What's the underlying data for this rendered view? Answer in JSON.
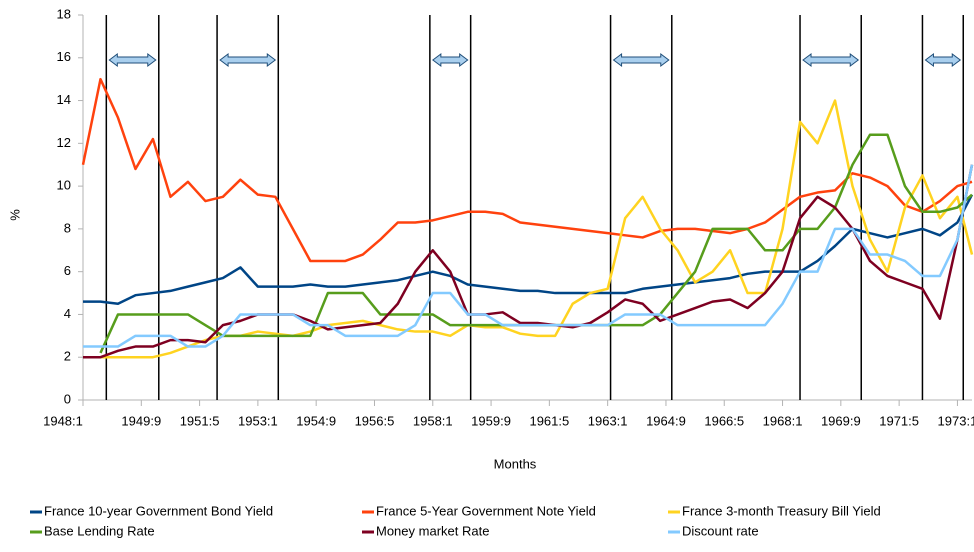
{
  "chart_data": {
    "type": "line",
    "x_label": "Months",
    "y_label": "%",
    "x": [
      0,
      6,
      12,
      18,
      24,
      30,
      36,
      42,
      48,
      54,
      60,
      66,
      72,
      78,
      84,
      90,
      96,
      102,
      108,
      114,
      120,
      126,
      132,
      138,
      144,
      150,
      156,
      162,
      168,
      174,
      180,
      186,
      192,
      198,
      204,
      210,
      216,
      222,
      228,
      234,
      240,
      246,
      252,
      258,
      264,
      270,
      276,
      282,
      288,
      294,
      300,
      305
    ],
    "xlim": [
      0,
      305
    ],
    "xticks": [
      {
        "value": 0,
        "label": "1948:1"
      },
      {
        "value": 20,
        "label": "1949:9"
      },
      {
        "value": 40,
        "label": "1951:5"
      },
      {
        "value": 60,
        "label": "1953:1"
      },
      {
        "value": 80,
        "label": "1954:9"
      },
      {
        "value": 100,
        "label": "1956:5"
      },
      {
        "value": 120,
        "label": "1958:1"
      },
      {
        "value": 140,
        "label": "1959:9"
      },
      {
        "value": 160,
        "label": "1961:5"
      },
      {
        "value": 180,
        "label": "1963:1"
      },
      {
        "value": 200,
        "label": "1964:9"
      },
      {
        "value": 220,
        "label": "1966:5"
      },
      {
        "value": 240,
        "label": "1968:1"
      },
      {
        "value": 260,
        "label": "1969:9"
      },
      {
        "value": 280,
        "label": "1971:5"
      },
      {
        "value": 300,
        "label": "1973:1"
      }
    ],
    "ylim": [
      0,
      18
    ],
    "yticks": [
      0,
      2,
      4,
      6,
      8,
      10,
      12,
      14,
      16,
      18
    ],
    "periods": [
      [
        8,
        26
      ],
      [
        46,
        67
      ],
      [
        119,
        133
      ],
      [
        181,
        202
      ],
      [
        246,
        267
      ],
      [
        288,
        302
      ]
    ],
    "series": [
      {
        "name": "France 10-year Government Bond Yield",
        "color": "#004586",
        "values": [
          4.6,
          4.6,
          4.5,
          4.9,
          5.0,
          5.1,
          5.3,
          5.5,
          5.7,
          6.2,
          5.3,
          5.3,
          5.3,
          5.4,
          5.3,
          5.3,
          5.4,
          5.5,
          5.6,
          5.8,
          6.0,
          5.8,
          5.4,
          5.3,
          5.2,
          5.1,
          5.1,
          5.0,
          5.0,
          5.0,
          5.0,
          5.0,
          5.2,
          5.3,
          5.4,
          5.5,
          5.6,
          5.7,
          5.9,
          6.0,
          6.0,
          6.0,
          6.5,
          7.2,
          8.0,
          7.8,
          7.6,
          7.8,
          8.0,
          7.7,
          8.3,
          9.6
        ]
      },
      {
        "name": "France 5-Year Government Note Yield",
        "color": "#ff420e",
        "values": [
          11,
          15,
          13.2,
          10.8,
          12.2,
          9.5,
          10.2,
          9.3,
          9.5,
          10.3,
          9.6,
          9.5,
          8.0,
          6.5,
          6.5,
          6.5,
          6.8,
          7.5,
          8.3,
          8.3,
          8.4,
          8.6,
          8.8,
          8.8,
          8.7,
          8.3,
          8.2,
          8.1,
          8.0,
          7.9,
          7.8,
          7.7,
          7.6,
          7.9,
          8.0,
          8.0,
          7.9,
          7.8,
          8.0,
          8.3,
          8.9,
          9.5,
          9.7,
          9.8,
          10.6,
          10.4,
          10.0,
          9.1,
          8.8,
          9.3,
          10.0,
          10.2
        ]
      },
      {
        "name": "France 3-month Treasury Bill Yield",
        "color": "#ffd320",
        "values": [
          null,
          2.0,
          2.0,
          2.0,
          2.0,
          2.2,
          2.5,
          2.8,
          3.0,
          3.0,
          3.2,
          3.1,
          3.0,
          3.2,
          3.5,
          3.6,
          3.7,
          3.5,
          3.3,
          3.2,
          3.2,
          3.0,
          3.5,
          3.4,
          3.4,
          3.1,
          3.0,
          3.0,
          4.5,
          5.0,
          5.2,
          8.5,
          9.5,
          8.0,
          7.0,
          5.5,
          6.0,
          7.0,
          5.0,
          5.0,
          8.0,
          13.0,
          12.0,
          14.0,
          10.0,
          7.5,
          6.0,
          9.0,
          10.5,
          8.5,
          9.5,
          6.8
        ]
      },
      {
        "name": "Base Lending Rate",
        "color": "#579d1c",
        "values": [
          null,
          2.2,
          4.0,
          4.0,
          4.0,
          4.0,
          4.0,
          3.5,
          3.0,
          3.0,
          3.0,
          3.0,
          3.0,
          3.0,
          5.0,
          5.0,
          5.0,
          4.0,
          4.0,
          4.0,
          4.0,
          3.5,
          3.5,
          3.5,
          3.5,
          3.5,
          3.5,
          3.5,
          3.5,
          3.5,
          3.5,
          3.5,
          3.5,
          4.0,
          5.0,
          6.0,
          8.0,
          8.0,
          8.0,
          7.0,
          7.0,
          8.0,
          8.0,
          9.0,
          11.0,
          12.4,
          12.4,
          10.0,
          8.8,
          8.8,
          9.0,
          9.6
        ]
      },
      {
        "name": "Money market Rate",
        "color": "#7e0021",
        "values": [
          2.0,
          2.0,
          2.3,
          2.5,
          2.5,
          2.8,
          2.8,
          2.7,
          3.5,
          3.7,
          4.0,
          4.0,
          4.0,
          3.7,
          3.3,
          3.4,
          3.5,
          3.6,
          4.5,
          6.0,
          7.0,
          6.0,
          4.0,
          4.0,
          4.1,
          3.6,
          3.6,
          3.5,
          3.4,
          3.6,
          4.1,
          4.7,
          4.5,
          3.7,
          4.0,
          4.3,
          4.6,
          4.7,
          4.3,
          5.0,
          6.0,
          8.5,
          9.5,
          9.0,
          8.0,
          6.5,
          5.8,
          5.5,
          5.2,
          3.8,
          7.5,
          11.0
        ]
      },
      {
        "name": "Discount rate",
        "color": "#83caff",
        "values": [
          2.5,
          2.5,
          2.5,
          3.0,
          3.0,
          3.0,
          2.5,
          2.5,
          3.0,
          4.0,
          4.0,
          4.0,
          4.0,
          3.5,
          3.5,
          3.0,
          3.0,
          3.0,
          3.0,
          3.5,
          5.0,
          5.0,
          4.0,
          4.0,
          3.5,
          3.5,
          3.5,
          3.5,
          3.5,
          3.5,
          3.5,
          4.0,
          4.0,
          4.0,
          3.5,
          3.5,
          3.5,
          3.5,
          3.5,
          3.5,
          4.5,
          6.0,
          6.0,
          8.0,
          8.0,
          6.8,
          6.8,
          6.5,
          5.8,
          5.8,
          7.5,
          11.0
        ]
      }
    ]
  }
}
